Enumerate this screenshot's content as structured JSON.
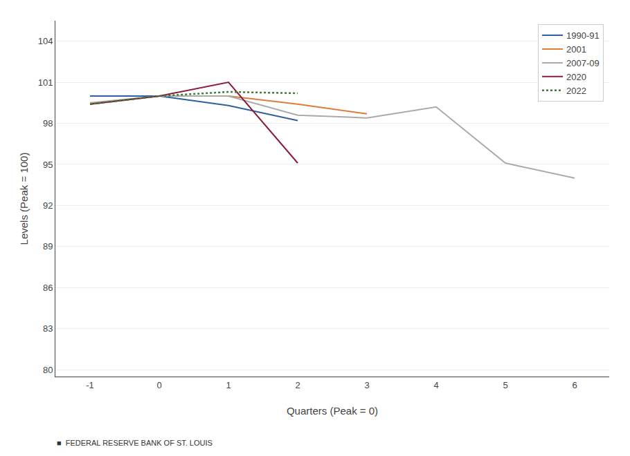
{
  "chart_data": {
    "type": "line",
    "x_label": "Quarters (Peak = 0)",
    "y_label": "Levels (Peak = 100)",
    "xlim": [
      -1.5,
      6.5
    ],
    "ylim": [
      79.5,
      105.5
    ],
    "xticks": [
      -1,
      0,
      1,
      2,
      3,
      4,
      5,
      6
    ],
    "yticks": [
      80,
      83,
      86,
      89,
      92,
      95,
      98,
      101,
      104
    ],
    "grid": true,
    "legend": "upper right",
    "annotations": [
      "■  FEDERAL RESERVE BANK OF ST. LOUIS"
    ],
    "series": [
      {
        "name": "1990-91",
        "color": "#2e5fa3",
        "line_style": "solid",
        "x": [
          -1,
          0,
          1,
          2
        ],
        "values": [
          100.0,
          100.0,
          99.3,
          98.2
        ]
      },
      {
        "name": "2001",
        "color": "#e07b39",
        "line_style": "solid",
        "x": [
          -1,
          0,
          1,
          2,
          3
        ],
        "values": [
          99.4,
          100.0,
          100.0,
          99.4,
          98.7
        ]
      },
      {
        "name": "2007-09",
        "color": "#aaaaaa",
        "line_style": "solid",
        "x": [
          -1,
          0,
          1,
          2,
          3,
          4,
          5,
          6
        ],
        "values": [
          99.5,
          100.0,
          100.0,
          98.6,
          98.4,
          99.2,
          95.1,
          94.0
        ]
      },
      {
        "name": "2020",
        "color": "#8b1a3a",
        "line_style": "solid",
        "x": [
          -1,
          0,
          1,
          2
        ],
        "values": [
          99.4,
          100.0,
          101.0,
          95.1
        ]
      },
      {
        "name": "2022",
        "color": "#3a7a3a",
        "line_style": "dotted",
        "x": [
          -1,
          0,
          1,
          2
        ],
        "values": [
          99.4,
          100.0,
          100.3,
          100.2
        ]
      }
    ]
  }
}
